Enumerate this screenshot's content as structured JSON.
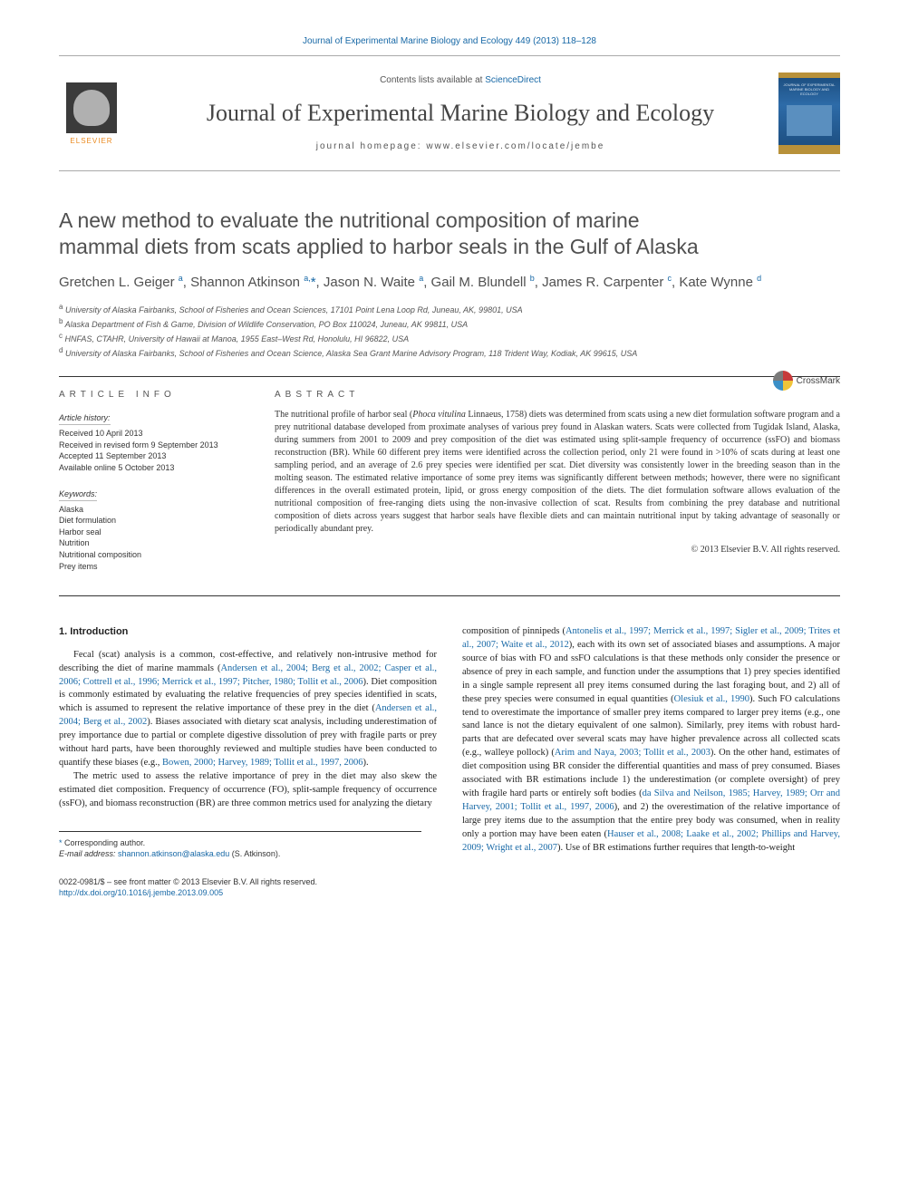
{
  "header": {
    "top_link": "Journal of Experimental Marine Biology and Ecology 449 (2013) 118–128",
    "contents_prefix": "Contents lists available at ",
    "contents_link": "ScienceDirect",
    "journal_name": "Journal of Experimental Marine Biology and Ecology",
    "homepage": "journal homepage: www.elsevier.com/locate/jembe",
    "elsevier_label": "ELSEVIER",
    "cover_title": "JOURNAL OF EXPERIMENTAL MARINE BIOLOGY AND ECOLOGY"
  },
  "crossmark": "CrossMark",
  "title_line1": "A new method to evaluate the nutritional composition of marine",
  "title_line2": "mammal diets from scats applied to harbor seals in the Gulf of Alaska",
  "authors_html": "Gretchen L. Geiger <sup>a</sup>, Shannon Atkinson <sup>a,</sup><span class=\"star\">*</span>, Jason N. Waite <sup>a</sup>, Gail M. Blundell <sup>b</sup>, James R. Carpenter <sup>c</sup>, Kate Wynne <sup>d</sup>",
  "affiliations": [
    "a  University of Alaska Fairbanks, School of Fisheries and Ocean Sciences, 17101 Point Lena Loop Rd, Juneau, AK, 99801, USA",
    "b  Alaska Department of Fish & Game, Division of Wildlife Conservation, PO Box 110024, Juneau, AK 99811, USA",
    "c  HNFAS, CTAHR, University of Hawaii at Manoa, 1955 East–West Rd, Honolulu, HI 96822, USA",
    "d  University of Alaska Fairbanks, School of Fisheries and Ocean Science, Alaska Sea Grant Marine Advisory Program, 118 Trident Way, Kodiak, AK 99615, USA"
  ],
  "article_info": {
    "heading": "article info",
    "history_label": "Article history:",
    "history": [
      "Received 10 April 2013",
      "Received in revised form 9 September 2013",
      "Accepted 11 September 2013",
      "Available online 5 October 2013"
    ],
    "keywords_label": "Keywords:",
    "keywords": [
      "Alaska",
      "Diet formulation",
      "Harbor seal",
      "Nutrition",
      "Nutritional composition",
      "Prey items"
    ]
  },
  "abstract": {
    "heading": "abstract",
    "body_html": "The nutritional profile of harbor seal (<i>Phoca vitulina</i> Linnaeus, 1758) diets was determined from scats using a new diet formulation software program and a prey nutritional database developed from proximate analyses of various prey found in Alaskan waters. Scats were collected from Tugidak Island, Alaska, during summers from 2001 to 2009 and prey composition of the diet was estimated using split-sample frequency of occurrence (ssFO) and biomass reconstruction (BR). While 60 different prey items were identified across the collection period, only 21 were found in >10% of scats during at least one sampling period, and an average of 2.6 prey species were identified per scat. Diet diversity was consistently lower in the breeding season than in the molting season. The estimated relative importance of some prey items was significantly different between methods; however, there were no significant differences in the overall estimated protein, lipid, or gross energy composition of the diets. The diet formulation software allows evaluation of the nutritional composition of free-ranging diets using the non-invasive collection of scat. Results from combining the prey database and nutritional composition of diets across years suggest that harbor seals have flexible diets and can maintain nutritional input by taking advantage of seasonally or periodically abundant prey.",
    "copyright": "© 2013 Elsevier B.V. All rights reserved."
  },
  "section1": {
    "title": "1. Introduction",
    "col_left": [
      "Fecal (scat) analysis is a common, cost-effective, and relatively non-intrusive method for describing the diet of marine mammals (<span class=\"cite\">Andersen et al., 2004; Berg et al., 2002; Casper et al., 2006; Cottrell et al., 1996; Merrick et al., 1997; Pitcher, 1980; Tollit et al., 2006</span>). Diet composition is commonly estimated by evaluating the relative frequencies of prey species identified in scats, which is assumed to represent the relative importance of these prey in the diet (<span class=\"cite\">Andersen et al., 2004; Berg et al., 2002</span>). Biases associated with dietary scat analysis, including underestimation of prey importance due to partial or complete digestive dissolution of prey with fragile parts or prey without hard parts, have been thoroughly reviewed and multiple studies have been conducted to quantify these biases (e.g., <span class=\"cite\">Bowen, 2000; Harvey, 1989; Tollit et al., 1997, 2006</span>).",
      "The metric used to assess the relative importance of prey in the diet may also skew the estimated diet composition. Frequency of occurrence (FO), split-sample frequency of occurrence (ssFO), and biomass reconstruction (BR) are three common metrics used for analyzing the dietary"
    ],
    "col_right": [
      "composition of pinnipeds (<span class=\"cite\">Antonelis et al., 1997; Merrick et al., 1997; Sigler et al., 2009; Trites et al., 2007; Waite et al., 2012</span>), each with its own set of associated biases and assumptions. A major source of bias with FO and ssFO calculations is that these methods only consider the presence or absence of prey in each sample, and function under the assumptions that 1) prey species identified in a single sample represent all prey items consumed during the last foraging bout, and 2) all of these prey species were consumed in equal quantities (<span class=\"cite\">Olesiuk et al., 1990</span>). Such FO calculations tend to overestimate the importance of smaller prey items compared to larger prey items (e.g., one sand lance is not the dietary equivalent of one salmon). Similarly, prey items with robust hard-parts that are defecated over several scats may have higher prevalence across all collected scats (e.g., walleye pollock) (<span class=\"cite\">Arim and Naya, 2003; Tollit et al., 2003</span>). On the other hand, estimates of diet composition using BR consider the differential quantities and mass of prey consumed. Biases associated with BR estimations include 1) the underestimation (or complete oversight) of prey with fragile hard parts or entirely soft bodies (<span class=\"cite\">da Silva and Neilson, 1985; Harvey, 1989; Orr and Harvey, 2001; Tollit et al., 1997, 2006</span>), and 2) the overestimation of the relative importance of large prey items due to the assumption that the entire prey body was consumed, when in reality only a portion may have been eaten (<span class=\"cite\">Hauser et al., 2008; Laake et al., 2002; Phillips and Harvey, 2009; Wright et al., 2007</span>). Use of BR estimations further requires that length-to-weight"
    ]
  },
  "footnotes": {
    "corr": "Corresponding author.",
    "email_label": "E-mail address:",
    "email": "shannon.atkinson@alaska.edu",
    "email_who": "(S. Atkinson)."
  },
  "bottom": {
    "issn": "0022-0981/$ – see front matter © 2013 Elsevier B.V. All rights reserved.",
    "doi": "http://dx.doi.org/10.1016/j.jembe.2013.09.005"
  },
  "colors": {
    "link": "#1768a6",
    "elsevier_orange": "#ea8a1f",
    "text": "#333333",
    "heading_gray": "#555555"
  }
}
